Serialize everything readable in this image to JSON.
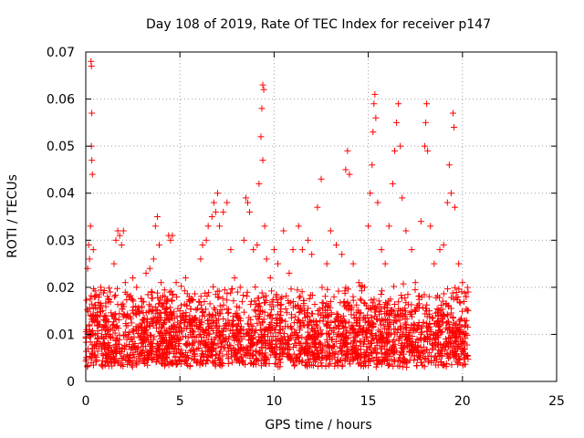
{
  "chart_data": {
    "type": "scatter",
    "title": "Day 108 of 2019, Rate Of TEC Index for receiver p147",
    "xlabel": "GPS time / hours",
    "ylabel": "ROTI / TECUs",
    "xlim": [
      0,
      25
    ],
    "ylim": [
      0,
      0.07
    ],
    "x_ticks": [
      0,
      5,
      10,
      15,
      20,
      25
    ],
    "x_tick_labels": [
      "0",
      "5",
      "10",
      "15",
      "20",
      "25"
    ],
    "y_ticks": [
      0,
      0.01,
      0.02,
      0.03,
      0.04,
      0.05,
      0.06,
      0.07
    ],
    "y_tick_labels": [
      "0",
      "0.01",
      "0.02",
      "0.03",
      "0.04",
      "0.05",
      "0.06",
      "0.07"
    ],
    "grid": true,
    "marker": "plus",
    "color": "#ff0000",
    "series": [
      {
        "points": [
          [
            0.05,
            0.011
          ],
          [
            0.1,
            0.024
          ],
          [
            0.15,
            0.029
          ],
          [
            0.2,
            0.026
          ],
          [
            0.25,
            0.033
          ],
          [
            0.28,
            0.068
          ],
          [
            0.3,
            0.067
          ],
          [
            0.32,
            0.057
          ],
          [
            0.3,
            0.05
          ],
          [
            0.32,
            0.047
          ],
          [
            0.35,
            0.044
          ],
          [
            0.4,
            0.028
          ],
          [
            0.5,
            0.018
          ],
          [
            0.6,
            0.009
          ],
          [
            0.7,
            0.012
          ],
          [
            0.8,
            0.02
          ],
          [
            0.9,
            0.015
          ],
          [
            1.0,
            0.008
          ],
          [
            1.1,
            0.013
          ],
          [
            1.2,
            0.011
          ],
          [
            1.3,
            0.019
          ],
          [
            1.5,
            0.025
          ],
          [
            1.6,
            0.03
          ],
          [
            1.7,
            0.032
          ],
          [
            1.8,
            0.031
          ],
          [
            1.9,
            0.029
          ],
          [
            2.0,
            0.032
          ],
          [
            2.1,
            0.021
          ],
          [
            2.2,
            0.014
          ],
          [
            2.3,
            0.018
          ],
          [
            2.5,
            0.022
          ],
          [
            2.7,
            0.02
          ],
          [
            3.0,
            0.017
          ],
          [
            3.2,
            0.023
          ],
          [
            3.4,
            0.024
          ],
          [
            3.6,
            0.026
          ],
          [
            3.7,
            0.033
          ],
          [
            3.8,
            0.035
          ],
          [
            3.9,
            0.029
          ],
          [
            4.0,
            0.021
          ],
          [
            4.2,
            0.018
          ],
          [
            4.4,
            0.031
          ],
          [
            4.5,
            0.03
          ],
          [
            4.6,
            0.031
          ],
          [
            4.8,
            0.021
          ],
          [
            5.0,
            0.015
          ],
          [
            5.3,
            0.022
          ],
          [
            5.5,
            0.017
          ],
          [
            5.8,
            0.012
          ],
          [
            6.0,
            0.017
          ],
          [
            6.1,
            0.026
          ],
          [
            6.2,
            0.029
          ],
          [
            6.4,
            0.03
          ],
          [
            6.5,
            0.033
          ],
          [
            6.7,
            0.035
          ],
          [
            6.8,
            0.038
          ],
          [
            6.9,
            0.036
          ],
          [
            7.0,
            0.04
          ],
          [
            7.1,
            0.033
          ],
          [
            7.3,
            0.036
          ],
          [
            7.5,
            0.038
          ],
          [
            7.7,
            0.028
          ],
          [
            7.9,
            0.022
          ],
          [
            8.2,
            0.02
          ],
          [
            8.4,
            0.03
          ],
          [
            8.5,
            0.039
          ],
          [
            8.6,
            0.038
          ],
          [
            8.7,
            0.036
          ],
          [
            8.9,
            0.028
          ],
          [
            9.1,
            0.029
          ],
          [
            9.2,
            0.042
          ],
          [
            9.3,
            0.052
          ],
          [
            9.35,
            0.058
          ],
          [
            9.4,
            0.063
          ],
          [
            9.45,
            0.062
          ],
          [
            9.4,
            0.047
          ],
          [
            9.5,
            0.033
          ],
          [
            9.6,
            0.026
          ],
          [
            9.8,
            0.022
          ],
          [
            10.0,
            0.028
          ],
          [
            10.2,
            0.025
          ],
          [
            10.5,
            0.032
          ],
          [
            10.8,
            0.023
          ],
          [
            11.0,
            0.028
          ],
          [
            11.3,
            0.033
          ],
          [
            11.5,
            0.028
          ],
          [
            11.8,
            0.03
          ],
          [
            12.0,
            0.027
          ],
          [
            12.3,
            0.037
          ],
          [
            12.5,
            0.043
          ],
          [
            12.8,
            0.025
          ],
          [
            13.0,
            0.032
          ],
          [
            13.3,
            0.029
          ],
          [
            13.6,
            0.027
          ],
          [
            13.8,
            0.045
          ],
          [
            13.9,
            0.049
          ],
          [
            14.0,
            0.044
          ],
          [
            14.2,
            0.025
          ],
          [
            14.5,
            0.021
          ],
          [
            14.8,
            0.02
          ],
          [
            15.0,
            0.033
          ],
          [
            15.1,
            0.04
          ],
          [
            15.2,
            0.046
          ],
          [
            15.25,
            0.053
          ],
          [
            15.3,
            0.059
          ],
          [
            15.35,
            0.061
          ],
          [
            15.4,
            0.056
          ],
          [
            15.5,
            0.038
          ],
          [
            15.7,
            0.028
          ],
          [
            15.9,
            0.025
          ],
          [
            16.1,
            0.033
          ],
          [
            16.3,
            0.042
          ],
          [
            16.4,
            0.049
          ],
          [
            16.5,
            0.055
          ],
          [
            16.6,
            0.059
          ],
          [
            16.7,
            0.05
          ],
          [
            16.8,
            0.039
          ],
          [
            17.0,
            0.032
          ],
          [
            17.3,
            0.028
          ],
          [
            17.5,
            0.021
          ],
          [
            17.8,
            0.034
          ],
          [
            18.0,
            0.05
          ],
          [
            18.05,
            0.055
          ],
          [
            18.1,
            0.059
          ],
          [
            18.15,
            0.049
          ],
          [
            18.3,
            0.033
          ],
          [
            18.5,
            0.025
          ],
          [
            18.8,
            0.028
          ],
          [
            19.0,
            0.029
          ],
          [
            19.2,
            0.038
          ],
          [
            19.3,
            0.046
          ],
          [
            19.4,
            0.04
          ],
          [
            19.5,
            0.057
          ],
          [
            19.55,
            0.054
          ],
          [
            19.6,
            0.037
          ],
          [
            19.8,
            0.025
          ],
          [
            20.0,
            0.021
          ],
          [
            20.2,
            0.018
          ],
          [
            20.3,
            0.019
          ]
        ]
      }
    ],
    "fill_band": {
      "x_range": [
        0,
        20.3
      ],
      "y_range": [
        0.003,
        0.02
      ],
      "note_density_source": "dense cluster of points"
    }
  }
}
